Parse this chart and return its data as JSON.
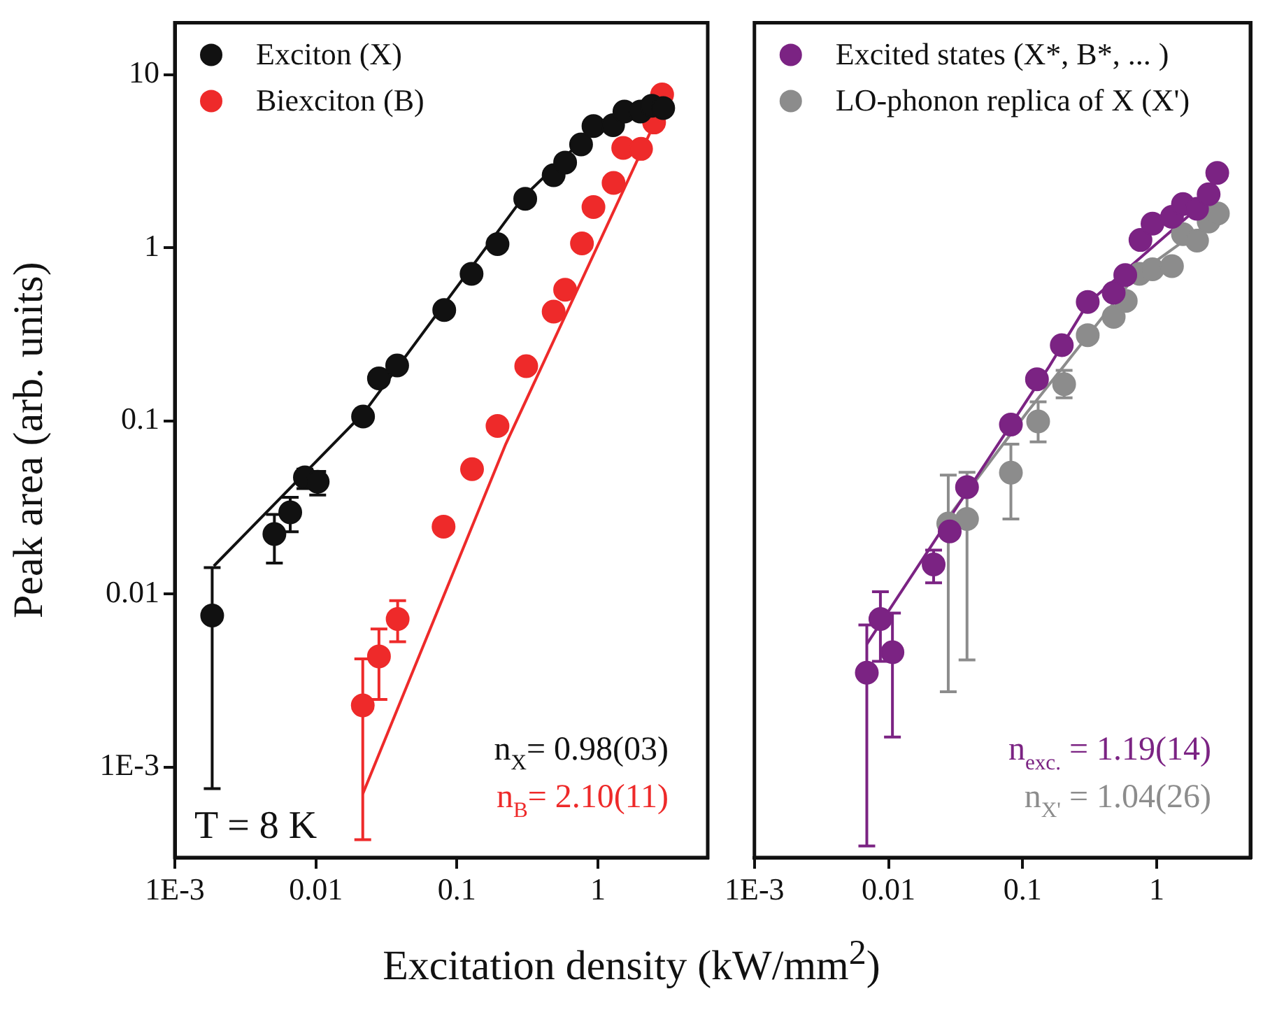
{
  "chart_data": [
    {
      "type": "scatter",
      "ylabel": "Peak area (arb. units)",
      "xlabel": "Excitation density (kW/mm$^{2}$)",
      "log": "xy",
      "grid": false,
      "legend": "top left",
      "marker": "circle",
      "xlim": [
        0.001,
        6
      ],
      "xticks": [
        {
          "value": 0.001,
          "label": "1E-3"
        },
        0.01,
        0.1,
        1
      ],
      "ylim": [
        0.00032,
        20
      ],
      "yticks": [
        {
          "value": 0.001,
          "label": "1E-3"
        },
        0.01,
        0.1,
        1,
        10
      ],
      "series": [
        {
          "name": "Exciton (X)",
          "color": "#111111",
          "x": [
            0.00184,
            0.00508,
            0.00658,
            0.00836,
            0.0103,
            0.0216,
            0.028,
            0.0377,
            0.0813,
            0.127,
            0.194,
            0.305,
            0.485,
            0.585,
            0.759,
            0.929,
            1.28,
            1.54,
            2.0,
            2.41,
            2.9
          ],
          "values": [
            0.0075,
            0.0222,
            0.0296,
            0.0472,
            0.0445,
            0.106,
            0.176,
            0.209,
            0.437,
            0.708,
            1.05,
            1.92,
            2.63,
            3.11,
            3.96,
            5.05,
            5.11,
            6.13,
            6.13,
            6.62,
            6.42
          ],
          "errors": [
            [
              0.00075,
              0.0142
            ],
            [
              0.0151,
              0.0288
            ],
            [
              0.0229,
              0.0362
            ],
            [
              0.0406,
              0.0526
            ],
            [
              0.0373,
              0.0511
            ],
            null,
            null,
            null,
            null,
            null,
            null,
            null,
            null,
            null,
            null,
            null,
            null,
            null,
            null,
            null,
            null
          ]
        },
        {
          "name": "Biexciton (B)",
          "color": "#ee2a2a",
          "x": [
            0.0215,
            0.028,
            0.038,
            0.0804,
            0.128,
            0.194,
            0.31,
            0.485,
            0.585,
            0.77,
            0.929,
            1.29,
            1.51,
            2.02,
            2.5,
            2.85
          ],
          "values": [
            0.00227,
            0.00436,
            0.00716,
            0.0245,
            0.0526,
            0.0935,
            0.207,
            0.428,
            0.573,
            1.06,
            1.72,
            2.37,
            3.78,
            3.73,
            5.3,
            7.7
          ],
          "errors": [
            [
              0.00038,
              0.00422
            ],
            [
              0.00246,
              0.00628
            ],
            [
              0.0053,
              0.00914
            ],
            null,
            null,
            null,
            null,
            null,
            null,
            null,
            null,
            null,
            null,
            null,
            null,
            null
          ]
        },
        {
          "type": "line",
          "marker": "none",
          "color": "#111111",
          "x": [
            0.00189,
            0.022,
            0.298,
            0.91,
            1.54,
            2.41
          ],
          "values": [
            0.0145,
            0.112,
            1.98,
            4.75,
            5.87,
            6.5
          ]
        },
        {
          "type": "line",
          "marker": "none",
          "color": "#ee2a2a",
          "x": [
            0.0215,
            0.222,
            2.68
          ],
          "values": [
            0.0007,
            0.0735,
            5.87
          ]
        }
      ],
      "annotations": [
        "T = 8 K",
        "n$_{X}$= 0.98(03)",
        "n$_{B}$= 2.10(11)"
      ]
    },
    {
      "type": "scatter",
      "log": "xy",
      "grid": false,
      "legend": "top left",
      "marker": "circle",
      "tick_labels": "x",
      "xlim": [
        0.001,
        5
      ],
      "xticks": [
        {
          "value": 0.001,
          "label": "1E-3"
        },
        0.01,
        0.1,
        1
      ],
      "ylim": [
        0.00032,
        20
      ],
      "yticks": [
        0.001,
        0.01,
        0.1,
        1,
        10
      ],
      "series": [
        {
          "name": "Excited states (X*, B*, ... )",
          "color": "#7b2383",
          "x": [
            0.00689,
            0.0087,
            0.0107,
            0.0217,
            0.0286,
            0.0385,
            0.0818,
            0.128,
            0.196,
            0.306,
            0.478,
            0.583,
            0.757,
            0.931,
            1.3,
            1.57,
            2.0,
            2.44,
            2.83
          ],
          "values": [
            0.00351,
            0.00716,
            0.00461,
            0.0148,
            0.023,
            0.0414,
            0.0953,
            0.174,
            0.274,
            0.487,
            0.55,
            0.696,
            1.11,
            1.38,
            1.51,
            1.79,
            1.68,
            2.04,
            2.71
          ],
          "errors": [
            [
              0.00035,
              0.00662
            ],
            [
              0.00408,
              0.0103
            ],
            [
              0.00149,
              0.00776
            ],
            [
              0.0116,
              0.0179
            ],
            null,
            null,
            null,
            null,
            null,
            null,
            null,
            null,
            null,
            null,
            null,
            null,
            null,
            null,
            null
          ]
        },
        {
          "name": "LO-phonon replica of X (X')",
          "color": "#8c8c8c",
          "x": [
            0.0279,
            0.0385,
            0.0818,
            0.1306,
            0.204,
            0.306,
            0.478,
            0.588,
            0.745,
            0.931,
            1.3,
            1.57,
            2.0,
            2.44,
            2.86
          ],
          "values": [
            0.0255,
            0.0271,
            0.0502,
            0.0993,
            0.163,
            0.313,
            0.399,
            0.493,
            0.708,
            0.752,
            0.784,
            1.2,
            1.1,
            1.42,
            1.58
          ],
          "errors": [
            [
              0.00272,
              0.0486
            ],
            [
              0.00416,
              0.0505
            ],
            [
              0.0271,
              0.0734
            ],
            [
              0.0757,
              0.129
            ],
            [
              0.136,
              0.196
            ],
            null,
            null,
            null,
            null,
            null,
            null,
            null,
            null,
            null,
            null
          ]
        },
        {
          "type": "line",
          "marker": "none",
          "color": "#7b2383",
          "x": [
            0.00689,
            0.157,
            0.306,
            2.44
          ],
          "values": [
            0.00513,
            0.205,
            0.477,
            1.93
          ]
        },
        {
          "type": "line",
          "marker": "none",
          "color": "#8c8c8c",
          "x": [
            0.0265,
            0.108,
            0.69,
            2.83
          ],
          "values": [
            0.0263,
            0.112,
            0.687,
            1.51
          ]
        }
      ],
      "annotations": [
        "n$_{exc.}$ = 1.19(14)",
        "n$_{X'}$ = 1.04(26)"
      ]
    }
  ]
}
